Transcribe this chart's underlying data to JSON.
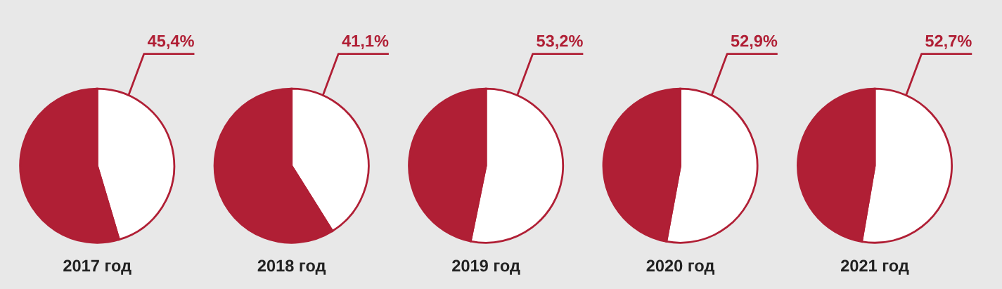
{
  "chart_data": [
    {
      "type": "pie",
      "title": "2017 год",
      "categories": [
        null,
        null
      ],
      "values": [
        45.4,
        54.6
      ],
      "value_labels": [
        "45,4%",
        null
      ],
      "colors": [
        "#ffffff",
        "#b01f35"
      ]
    },
    {
      "type": "pie",
      "title": "2018 год",
      "categories": [
        null,
        null
      ],
      "values": [
        41.1,
        58.9
      ],
      "value_labels": [
        "41,1%",
        null
      ],
      "colors": [
        "#ffffff",
        "#b01f35"
      ]
    },
    {
      "type": "pie",
      "title": "2019 год",
      "categories": [
        null,
        null
      ],
      "values": [
        53.2,
        46.8
      ],
      "value_labels": [
        "53,2%",
        null
      ],
      "colors": [
        "#ffffff",
        "#b01f35"
      ]
    },
    {
      "type": "pie",
      "title": "2020 год",
      "categories": [
        null,
        null
      ],
      "values": [
        52.9,
        47.1
      ],
      "value_labels": [
        "52,9%",
        null
      ],
      "colors": [
        "#ffffff",
        "#b01f35"
      ]
    },
    {
      "type": "pie",
      "title": "2021 год",
      "categories": [
        null,
        null
      ],
      "values": [
        52.7,
        47.3
      ],
      "value_labels": [
        "52,7%",
        null
      ],
      "colors": [
        "#ffffff",
        "#b01f35"
      ]
    }
  ]
}
